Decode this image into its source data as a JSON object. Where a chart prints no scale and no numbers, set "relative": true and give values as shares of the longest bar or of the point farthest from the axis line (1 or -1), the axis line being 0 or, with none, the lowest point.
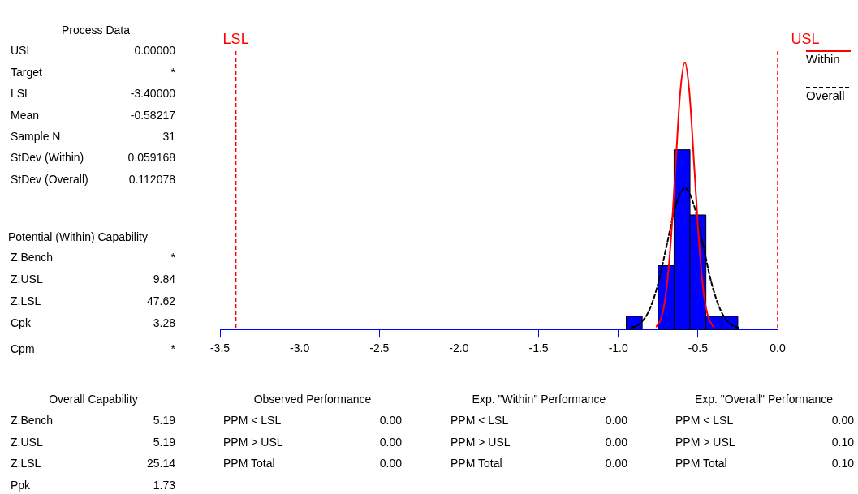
{
  "chart_data": {
    "type": "histogram",
    "relative": true,
    "xlim": [
      -3.5,
      0.0
    ],
    "xticks": [
      {
        "value": -3.5,
        "label": "-3.5"
      },
      {
        "value": -3.0,
        "label": "-3.0"
      },
      {
        "value": -2.5,
        "label": "-2.5"
      },
      {
        "value": -2.0,
        "label": "-2.0"
      },
      {
        "value": -1.5,
        "label": "-1.5"
      },
      {
        "value": -1.0,
        "label": "-1.0"
      },
      {
        "value": -0.5,
        "label": "-0.5"
      },
      {
        "value": 0.0,
        "label": "0.0"
      }
    ],
    "tick_labels": "x",
    "legend": "top right",
    "marker": "none",
    "series": [
      {
        "type": "histogram",
        "color": "#0000ff",
        "bins": [
          -0.95,
          -0.85,
          -0.75,
          -0.65,
          -0.55,
          -0.45,
          -0.35,
          -0.25
        ],
        "values": [
          0.049,
          0,
          0.239,
          0.673,
          0.429,
          0.049,
          0.049
        ]
      },
      {
        "type": "line",
        "name": "Within",
        "color": "#ff0000",
        "line_style": "solid",
        "x": [
          -0.76,
          -0.73,
          -0.701,
          -0.671,
          -0.641,
          -0.612,
          -0.582,
          -0.553,
          -0.523,
          -0.493,
          -0.464,
          -0.434,
          -0.404
        ],
        "values": [
          0.011,
          0.044,
          0.135,
          0.325,
          0.607,
          0.883,
          1,
          0.883,
          0.607,
          0.325,
          0.135,
          0.044,
          0.011
        ]
      },
      {
        "type": "line",
        "name": "Overall",
        "color": "#000000",
        "line_style": "dashed",
        "x": [
          -0.918,
          -0.862,
          -0.806,
          -0.75,
          -0.694,
          -0.638,
          -0.582,
          -0.526,
          -0.47,
          -0.414,
          -0.358,
          -0.302,
          -0.246
        ],
        "values": [
          0.006,
          0.023,
          0.072,
          0.172,
          0.321,
          0.467,
          0.529,
          0.467,
          0.321,
          0.172,
          0.072,
          0.023,
          0.006
        ]
      }
    ],
    "ref_lines": [
      {
        "axis": "x",
        "value": -3.4,
        "label": "LSL",
        "color": "#ff0000",
        "line_style": "dashed"
      },
      {
        "axis": "x",
        "value": 0.0,
        "label": "USL",
        "color": "#ff0000",
        "line_style": "dashed"
      }
    ],
    "annotations": [
      "Process Data",
      "USL",
      "0.00000",
      "Target",
      "*",
      "LSL",
      "-3.40000",
      "Mean",
      "-0.58217",
      "Sample N",
      "31",
      "StDev (Within)",
      "0.059168",
      "StDev (Overall)",
      "0.112078",
      "Potential (Within) Capability",
      "Z.Bench",
      "*",
      "Z.USL",
      "9.84",
      "Z.LSL",
      "47.62",
      "Cpk",
      "3.28",
      "Cpm",
      "*",
      "Overall Capability",
      "Z.Bench",
      "5.19",
      "Z.USL",
      "5.19",
      "Z.LSL",
      "25.14",
      "Ppk",
      "1.73",
      "Observed Performance",
      "PPM < LSL",
      "0.00",
      "PPM > USL",
      "0.00",
      "PPM Total",
      "0.00",
      "Exp. \"Within\" Performance",
      "PPM < LSL",
      "0.00",
      "PPM > USL",
      "0.00",
      "PPM Total",
      "0.00",
      "Exp. \"Overall\" Performance",
      "PPM < LSL",
      "0.00",
      "PPM > USL",
      "0.10",
      "PPM Total",
      "0.10"
    ]
  }
}
